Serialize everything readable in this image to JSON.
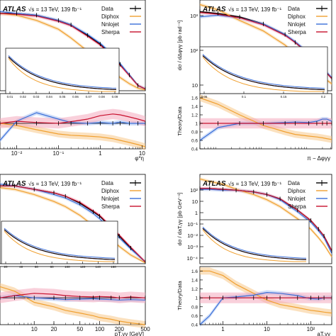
{
  "colors": {
    "data": "#000000",
    "diphox": "#f0a030",
    "diphox_band": "#f7c98a",
    "nnlojet": "#3a6fd8",
    "nnlojet_band": "#a9c3f3",
    "sherpa": "#c8102e",
    "sherpa_band": "#f4a9bd"
  },
  "chart_data": [
    {
      "type": "line",
      "panel": "top-left",
      "atlas_label": "ATLAS",
      "energy_label": "√s = 13 TeV, 139 fb⁻¹",
      "legend": [
        "Data",
        "Diphox",
        "Nnlojet",
        "Sherpa"
      ],
      "legend_placement": "top-right",
      "xlabel": "φ*η",
      "ylabel": "",
      "xscale": "log",
      "xlim": [
        0.004,
        12
      ],
      "ratio_ticks": [],
      "x_ticks": [
        {
          "v": 0.01,
          "label": "10⁻²"
        },
        {
          "v": 0.1,
          "label": "10⁻¹"
        },
        {
          "v": 1,
          "label": "1"
        },
        {
          "v": 10,
          "label": "10"
        }
      ],
      "inset": {
        "x_ticks": [
          "0.01",
          "0.02",
          "0.03",
          "0.04",
          "0.05",
          "0.06",
          "0.07",
          "0.08",
          "0.09"
        ]
      },
      "series": [
        {
          "name": "Data",
          "x": [
            0.004,
            0.01,
            0.03,
            0.1,
            0.2,
            0.5,
            1,
            2,
            3,
            5,
            8,
            12
          ],
          "y": [
            0.88,
            0.88,
            0.86,
            0.8,
            0.75,
            0.63,
            0.53,
            0.4,
            0.3,
            0.18,
            0.06,
            0.02
          ]
        },
        {
          "name": "Diphox",
          "x": [
            0.004,
            0.01,
            0.03,
            0.1,
            0.2,
            0.5,
            1,
            2,
            3,
            5,
            8,
            12
          ],
          "y": [
            0.88,
            0.86,
            0.8,
            0.7,
            0.6,
            0.45,
            0.34,
            0.22,
            0.15,
            0.08,
            0.03,
            0.01
          ]
        },
        {
          "name": "Nnlojet",
          "x": [
            0.004,
            0.01,
            0.03,
            0.1,
            0.2,
            0.5,
            1,
            2,
            3,
            5,
            8,
            12
          ],
          "y": [
            0.9,
            0.88,
            0.86,
            0.8,
            0.75,
            0.64,
            0.54,
            0.41,
            0.31,
            0.18,
            0.06,
            0.02
          ]
        },
        {
          "name": "Sherpa",
          "x": [
            0.004,
            0.01,
            0.03,
            0.1,
            0.2,
            0.5,
            1,
            2,
            3,
            5,
            8,
            12
          ],
          "y": [
            0.88,
            0.87,
            0.85,
            0.79,
            0.74,
            0.62,
            0.52,
            0.39,
            0.29,
            0.17,
            0.06,
            0.02
          ]
        }
      ],
      "ratio_series": [
        {
          "name": "Diphox",
          "y": [
            1.0,
            0.95,
            0.85,
            0.75,
            0.72,
            0.7,
            0.68,
            0.64,
            0.6,
            0.55,
            0.5,
            0.45
          ]
        },
        {
          "name": "Nnlojet",
          "y": [
            0.6,
            1.05,
            1.25,
            1.1,
            1.02,
            1.0,
            1.02,
            1.0,
            1.03,
            1.0,
            1.0,
            1.0
          ]
        },
        {
          "name": "Sherpa",
          "y": [
            1.0,
            1.05,
            1.02,
            1.0,
            1.04,
            1.1,
            1.18,
            1.22,
            1.2,
            1.15,
            1.1,
            1.05
          ]
        }
      ]
    },
    {
      "type": "line",
      "panel": "top-right",
      "atlas_label": "ATLAS",
      "energy_label": "√s = 13 TeV, 139 fb⁻¹",
      "legend": [
        "Data",
        "Diphox",
        "Nnlojet",
        "Sherpa"
      ],
      "legend_placement": "top-right",
      "xlabel": "π − Δφγγ",
      "ylabel": "dσ / dΔφγγ [pb rad⁻¹]",
      "ratio_ylabel": "Theory/Data",
      "xscale": "log",
      "xlim": [
        0.004,
        3.2
      ],
      "y_ticks": [
        {
          "v": 1000,
          "label": "10³"
        },
        {
          "v": 100,
          "label": "10²"
        },
        {
          "v": 10,
          "label": "10"
        }
      ],
      "ratio_ticks": [
        "1.6",
        "1.4",
        "1.2",
        "1",
        "0.8",
        "0.6",
        "0.4"
      ],
      "inset": {
        "x_ticks": [
          "0.05",
          "0.1",
          "0.15",
          "0.2"
        ]
      },
      "series": [
        {
          "name": "Data",
          "x": [
            0.004,
            0.01,
            0.03,
            0.1,
            0.3,
            0.5,
            1,
            1.5,
            2,
            2.5,
            3.2
          ],
          "y": [
            0.9,
            0.88,
            0.84,
            0.76,
            0.64,
            0.55,
            0.42,
            0.34,
            0.27,
            0.2,
            0.14
          ]
        },
        {
          "name": "Diphox",
          "x": [
            0.004,
            0.01,
            0.03,
            0.1,
            0.3,
            0.5,
            1,
            1.5,
            2,
            2.5,
            3.2
          ],
          "y": [
            0.98,
            0.92,
            0.8,
            0.68,
            0.52,
            0.42,
            0.3,
            0.22,
            0.16,
            0.12,
            0.08
          ]
        },
        {
          "name": "Nnlojet",
          "x": [
            0.004,
            0.01,
            0.03,
            0.1,
            0.3,
            0.5,
            1,
            1.5,
            2,
            2.5,
            3.2
          ],
          "y": [
            0.84,
            0.86,
            0.83,
            0.76,
            0.64,
            0.56,
            0.43,
            0.35,
            0.28,
            0.21,
            0.15
          ]
        },
        {
          "name": "Sherpa",
          "x": [
            0.004,
            0.01,
            0.03,
            0.1,
            0.3,
            0.5,
            1,
            1.5,
            2,
            2.5,
            3.2
          ],
          "y": [
            0.89,
            0.87,
            0.83,
            0.75,
            0.63,
            0.55,
            0.42,
            0.34,
            0.27,
            0.2,
            0.14
          ]
        }
      ],
      "ratio_series": [
        {
          "name": "Diphox",
          "y": [
            1.6,
            1.45,
            1.2,
            0.95,
            0.8,
            0.74,
            0.7,
            0.68,
            0.66,
            0.64,
            0.62
          ]
        },
        {
          "name": "Nnlojet",
          "y": [
            0.6,
            0.9,
            1.0,
            1.0,
            1.02,
            1.03,
            1.02,
            1.05,
            1.1,
            1.1,
            1.05
          ]
        },
        {
          "name": "Sherpa",
          "y": [
            1.0,
            1.0,
            1.0,
            1.0,
            1.0,
            1.0,
            1.0,
            1.0,
            1.0,
            1.0,
            1.0
          ]
        }
      ]
    },
    {
      "type": "line",
      "panel": "bottom-left",
      "atlas_label": "ATLAS",
      "energy_label": "√s = 13 TeV, 139 fb⁻¹",
      "legend": [
        "Data",
        "Diphox",
        "Nnlojet",
        "Sherpa"
      ],
      "legend_placement": "top-right",
      "xlabel": "pT,γγ [GeV]",
      "ylabel": "",
      "xscale": "log",
      "xlim": [
        3,
        500
      ],
      "x_ticks": [
        {
          "v": 10,
          "label": "10"
        },
        {
          "v": 20,
          "label": "20"
        },
        {
          "v": 50,
          "label": "50"
        },
        {
          "v": 100,
          "label": "100"
        },
        {
          "v": 200,
          "label": "200"
        },
        {
          "v": 500,
          "label": "500"
        }
      ],
      "ratio_ticks": [],
      "inset": {
        "x_ticks": [
          "20",
          "40",
          "60",
          "80",
          "100",
          "120",
          "140",
          "160"
        ]
      },
      "series": [
        {
          "name": "Data",
          "x": [
            3,
            5,
            10,
            20,
            30,
            50,
            80,
            100,
            150,
            200,
            300,
            500
          ],
          "y": [
            0.9,
            0.9,
            0.86,
            0.82,
            0.78,
            0.7,
            0.6,
            0.55,
            0.42,
            0.32,
            0.18,
            0.02
          ]
        },
        {
          "name": "Diphox",
          "x": [
            3,
            5,
            10,
            20,
            30,
            50,
            80,
            100,
            150,
            200,
            300,
            500
          ],
          "y": [
            0.88,
            0.86,
            0.8,
            0.72,
            0.66,
            0.56,
            0.44,
            0.38,
            0.28,
            0.2,
            0.1,
            0.01
          ]
        },
        {
          "name": "Nnlojet",
          "x": [
            3,
            5,
            10,
            20,
            30,
            50,
            80,
            100,
            150,
            200,
            300,
            500
          ],
          "y": [
            0.92,
            0.9,
            0.86,
            0.8,
            0.76,
            0.68,
            0.58,
            0.52,
            0.4,
            0.3,
            0.17,
            0.02
          ]
        },
        {
          "name": "Sherpa",
          "x": [
            3,
            5,
            10,
            20,
            30,
            50,
            80,
            100,
            150,
            200,
            300,
            500
          ],
          "y": [
            0.9,
            0.9,
            0.86,
            0.82,
            0.78,
            0.71,
            0.61,
            0.56,
            0.43,
            0.33,
            0.19,
            0.02
          ]
        }
      ],
      "ratio_series": [
        {
          "name": "Diphox",
          "y": [
            1.25,
            1.15,
            0.9,
            0.8,
            0.72,
            0.66,
            0.6,
            0.56,
            0.52,
            0.48,
            0.44,
            0.4
          ]
        },
        {
          "name": "Nnlojet",
          "y": [
            1.0,
            1.05,
            1.0,
            0.98,
            0.96,
            0.97,
            0.98,
            0.97,
            0.96,
            0.95,
            0.96,
            0.95
          ]
        },
        {
          "name": "Sherpa",
          "y": [
            1.0,
            1.05,
            1.1,
            1.08,
            1.05,
            1.03,
            1.02,
            1.03,
            1.02,
            1.0,
            1.02,
            1.0
          ]
        }
      ]
    },
    {
      "type": "line",
      "panel": "bottom-right",
      "atlas_label": "ATLAS",
      "energy_label": "√s = 13 TeV, 139 fb⁻¹",
      "legend": [
        "Data",
        "Diphox",
        "Nnlojet",
        "Sherpa"
      ],
      "legend_placement": "top-right",
      "xlabel": "aT,γγ",
      "ylabel": "dσ / daT,γγ [pb GeV⁻¹]",
      "ratio_ylabel": "Theory/Data",
      "xscale": "log",
      "xlim": [
        0.3,
        300
      ],
      "x_ticks": [
        {
          "v": 1,
          "label": "1"
        },
        {
          "v": 10,
          "label": "10"
        },
        {
          "v": 100,
          "label": "10²"
        }
      ],
      "y_ticks": [
        {
          "v": 100,
          "label": "10²"
        },
        {
          "v": 10,
          "label": "10"
        },
        {
          "v": 1,
          "label": "1"
        },
        {
          "v": 0.1,
          "label": "10⁻¹"
        },
        {
          "v": 0.01,
          "label": "10⁻²"
        },
        {
          "v": 0.001,
          "label": "10⁻³"
        },
        {
          "v": 0.0001,
          "label": "10⁻⁴"
        }
      ],
      "ratio_ticks": [
        "1.6",
        "1.4",
        "1.2",
        "1",
        "0.8",
        "0.6",
        "0.4"
      ],
      "inset": {
        "x_ticks": []
      },
      "series": [
        {
          "name": "Data",
          "x": [
            0.3,
            0.5,
            1,
            2,
            5,
            10,
            20,
            50,
            100,
            150,
            200,
            300
          ],
          "y": [
            0.87,
            0.87,
            0.86,
            0.85,
            0.83,
            0.8,
            0.75,
            0.62,
            0.5,
            0.4,
            0.32,
            0.15
          ]
        },
        {
          "name": "Diphox",
          "x": [
            0.3,
            0.5,
            1,
            2,
            5,
            10,
            20,
            50,
            100,
            150,
            200,
            300
          ],
          "y": [
            0.98,
            0.95,
            0.92,
            0.86,
            0.8,
            0.74,
            0.66,
            0.52,
            0.4,
            0.3,
            0.22,
            0.08
          ]
        },
        {
          "name": "Nnlojet",
          "x": [
            0.3,
            0.5,
            1,
            2,
            5,
            10,
            20,
            50,
            100,
            150,
            200,
            300
          ],
          "y": [
            0.86,
            0.86,
            0.85,
            0.85,
            0.83,
            0.8,
            0.74,
            0.6,
            0.48,
            0.38,
            0.3,
            0.12
          ]
        },
        {
          "name": "Sherpa",
          "x": [
            0.3,
            0.5,
            1,
            2,
            5,
            10,
            20,
            50,
            100,
            150,
            200,
            300
          ],
          "y": [
            0.87,
            0.87,
            0.86,
            0.85,
            0.83,
            0.8,
            0.75,
            0.62,
            0.5,
            0.4,
            0.32,
            0.15
          ]
        }
      ],
      "ratio_series": [
        {
          "name": "Diphox",
          "y": [
            1.6,
            1.6,
            1.5,
            1.3,
            1.1,
            0.95,
            0.85,
            0.78,
            0.72,
            0.7,
            0.68,
            0.66
          ]
        },
        {
          "name": "Nnlojet",
          "y": [
            0.4,
            0.6,
            1.0,
            1.02,
            1.06,
            1.12,
            1.1,
            1.05,
            0.98,
            0.97,
            1.0,
            1.0
          ]
        },
        {
          "name": "Sherpa",
          "y": [
            1.0,
            1.0,
            1.0,
            1.0,
            1.0,
            1.0,
            1.0,
            1.0,
            1.0,
            1.0,
            1.0,
            1.0
          ]
        }
      ]
    }
  ]
}
